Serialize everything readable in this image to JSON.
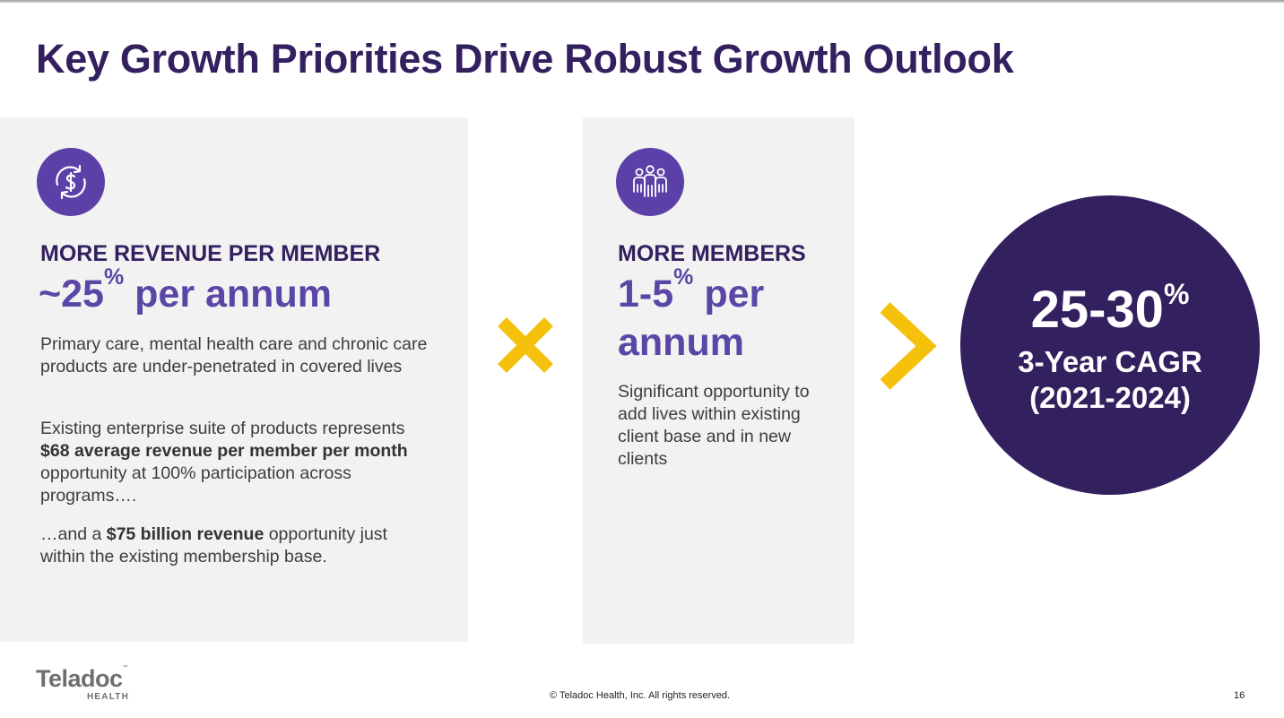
{
  "title": "Key Growth Priorities Drive Robust Growth Outlook",
  "colors": {
    "title": "#33205f",
    "accent_purple": "#5a46a6",
    "icon_bg": "#5b40a8",
    "yellow": "#f5c10d",
    "panel_bg": "#f2f2f2"
  },
  "left": {
    "icon": "dollar-cycle-icon",
    "heading": "MORE REVENUE PER MEMBER",
    "big_value": "~25",
    "big_sup": "%",
    "big_suffix": " per annum",
    "p1": "Primary care, mental health care and chronic care products are under-penetrated in covered lives",
    "p2_pre": "Existing enterprise suite of products represents ",
    "p2_bold": "$68 average revenue per member per month",
    "p2_post": " opportunity at 100% participation across programs….",
    "p3_pre": "…and a ",
    "p3_bold": "$75 billion revenue",
    "p3_post": " opportunity just within the existing membership base."
  },
  "operator_multiply": "multiply-icon",
  "middle": {
    "icon": "people-group-icon",
    "heading": "MORE MEMBERS",
    "big_value": "1-5",
    "big_sup": "%",
    "big_suffix": " per",
    "big_line2": "annum",
    "p1": "Significant opportunity to add lives within existing client base and in new clients"
  },
  "operator_result": "chevron-right-icon",
  "result": {
    "value": "25-30",
    "sup": "%",
    "line1": "3-Year CAGR",
    "line2": "(2021-2024)"
  },
  "logo": {
    "word": "Teladoc",
    "tm": "™",
    "sub": "HEALTH"
  },
  "footer": {
    "copyright": "© Teladoc Health, Inc. All rights reserved.",
    "page": "16"
  }
}
